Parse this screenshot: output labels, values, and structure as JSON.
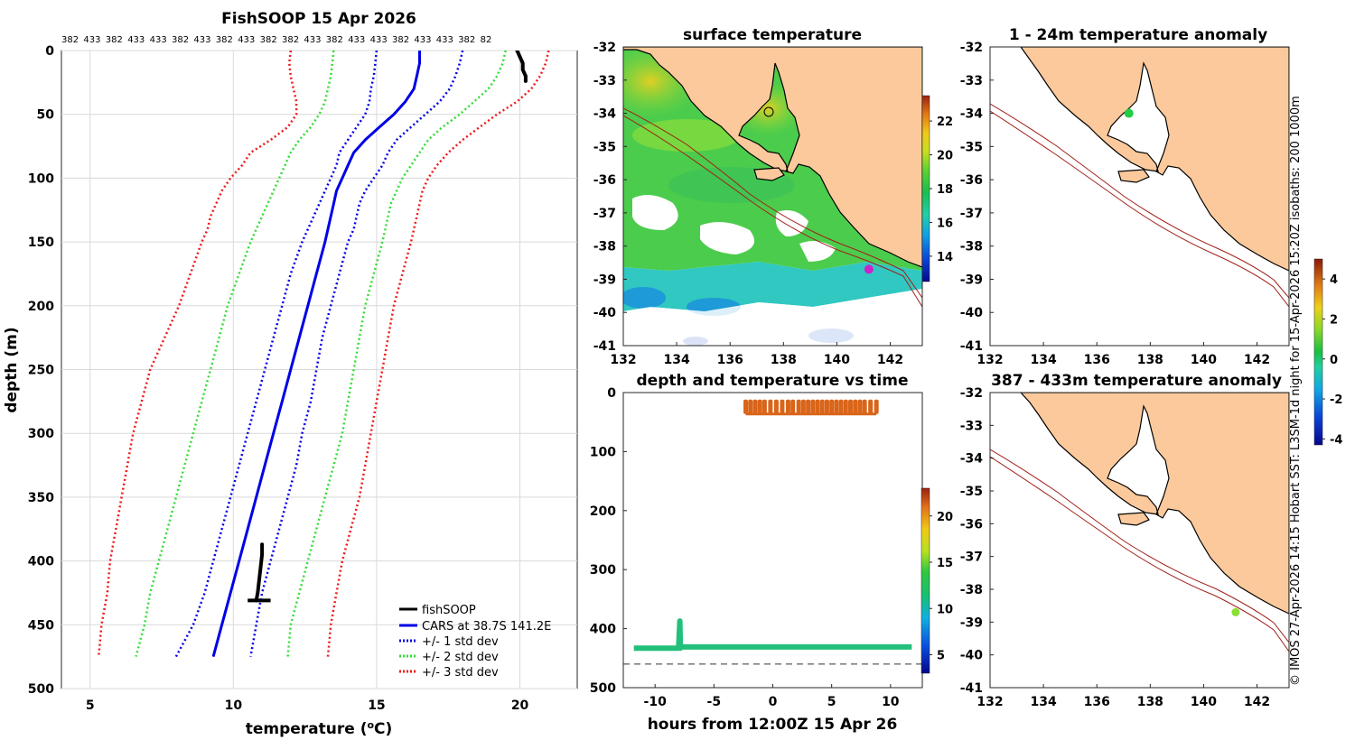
{
  "colors": {
    "land": "#fbc99b",
    "coast": "#000000",
    "isobath": "#a02018",
    "cars": "#0000e6",
    "std1": "#0000e6",
    "std2": "#33dd33",
    "std3": "#ee1a1a",
    "fish": "#000000",
    "trace_depth": "#22c07a",
    "trace_temp": "#d9651a"
  },
  "credit": "© IMOS 27-Apr-2026 14:15 Hobart SST: L3SM-1d night for 15-Apr-2026 15:20Z isobaths: 200  1000m",
  "chart_data": [
    {
      "type": "line",
      "title": "FishSOOP 15 Apr 2026",
      "xlabel": "temperature (°C)",
      "ylabel": "depth (m)",
      "xlim": [
        4,
        22
      ],
      "ylim": [
        0,
        500
      ],
      "xticks": [
        5,
        10,
        15,
        20
      ],
      "yticks": [
        0,
        50,
        100,
        150,
        200,
        250,
        300,
        350,
        400,
        450,
        500
      ],
      "top_labels": [
        "382",
        "433",
        "382",
        "433",
        "433",
        "382",
        "433",
        "382",
        "433",
        "382",
        "382",
        "433",
        "382",
        "433",
        "433",
        "382",
        "433",
        "433",
        "382",
        "82"
      ],
      "legend": [
        "fishSOOP",
        "CARS at 38.7S 141.2E",
        "+/- 1 std dev",
        "+/- 2 std dev",
        "+/- 3 std dev"
      ],
      "depth": [
        0,
        10,
        20,
        30,
        40,
        50,
        60,
        70,
        80,
        90,
        100,
        110,
        120,
        130,
        140,
        150,
        175,
        200,
        225,
        250,
        275,
        300,
        325,
        350,
        375,
        400,
        425,
        450,
        475
      ],
      "series": [
        {
          "name": "CARS mean",
          "values": [
            16.5,
            16.5,
            16.4,
            16.3,
            16.0,
            15.6,
            15.1,
            14.6,
            14.2,
            14.0,
            13.8,
            13.6,
            13.5,
            13.4,
            13.3,
            13.2,
            12.9,
            12.6,
            12.3,
            12.0,
            11.7,
            11.4,
            11.1,
            10.8,
            10.5,
            10.2,
            9.9,
            9.6,
            9.3
          ]
        },
        {
          "name": "+1 std",
          "values": [
            15.0,
            14.95,
            14.9,
            14.8,
            14.75,
            14.6,
            14.3,
            14.0,
            13.7,
            13.6,
            13.4,
            13.2,
            13.0,
            12.8,
            12.6,
            12.4,
            12.0,
            11.7,
            11.4,
            11.1,
            10.8,
            10.5,
            10.2,
            9.9,
            9.6,
            9.3,
            9.0,
            8.6,
            8.0
          ]
        },
        {
          "name": "-1 std",
          "values": [
            18.0,
            17.9,
            17.75,
            17.55,
            17.2,
            16.7,
            16.2,
            15.7,
            15.4,
            15.2,
            14.9,
            14.6,
            14.4,
            14.3,
            14.2,
            14.0,
            13.7,
            13.4,
            13.1,
            12.9,
            12.7,
            12.4,
            12.2,
            11.9,
            11.6,
            11.3,
            11.0,
            10.8,
            10.6
          ]
        },
        {
          "name": "-2 std",
          "values": [
            13.5,
            13.45,
            13.4,
            13.3,
            13.2,
            13.0,
            12.7,
            12.3,
            12.0,
            11.8,
            11.6,
            11.4,
            11.2,
            11.0,
            10.8,
            10.6,
            10.2,
            9.8,
            9.5,
            9.2,
            8.9,
            8.6,
            8.3,
            8.0,
            7.7,
            7.4,
            7.1,
            6.9,
            6.6
          ]
        },
        {
          "name": "+2 std",
          "values": [
            19.5,
            19.4,
            19.2,
            18.9,
            18.4,
            17.9,
            17.3,
            16.8,
            16.5,
            16.2,
            15.9,
            15.7,
            15.5,
            15.4,
            15.3,
            15.2,
            14.9,
            14.6,
            14.4,
            14.2,
            14.0,
            13.8,
            13.5,
            13.2,
            12.9,
            12.6,
            12.3,
            12.0,
            11.9
          ]
        },
        {
          "name": "-3 std",
          "values": [
            12.0,
            11.95,
            12.0,
            12.1,
            12.2,
            12.2,
            11.9,
            11.3,
            10.6,
            10.3,
            9.9,
            9.6,
            9.4,
            9.2,
            9.1,
            8.9,
            8.5,
            8.1,
            7.6,
            7.1,
            6.8,
            6.5,
            6.3,
            6.1,
            5.9,
            5.7,
            5.6,
            5.4,
            5.3
          ]
        },
        {
          "name": "+3 std",
          "values": [
            21.0,
            20.9,
            20.7,
            20.4,
            19.9,
            19.2,
            18.6,
            18.0,
            17.5,
            17.1,
            16.8,
            16.6,
            16.5,
            16.4,
            16.3,
            16.2,
            15.9,
            15.6,
            15.4,
            15.2,
            15.0,
            14.8,
            14.6,
            14.4,
            14.1,
            13.8,
            13.6,
            13.4,
            13.3
          ]
        }
      ],
      "fishsoop_segments": [
        {
          "depth": [
            0,
            5,
            10,
            15,
            20,
            24
          ],
          "values": [
            19.9,
            20.0,
            20.1,
            20.1,
            20.2,
            20.2
          ]
        },
        {
          "depth": [
            387,
            395,
            405,
            415,
            425,
            431
          ],
          "values": [
            11.0,
            11.0,
            10.95,
            10.9,
            10.85,
            10.8
          ]
        }
      ]
    },
    {
      "type": "heatmap",
      "title": "surface temperature",
      "xticks": [
        132,
        134,
        136,
        138,
        140,
        142
      ],
      "yticks": [
        -32,
        -33,
        -34,
        -35,
        -36,
        -37,
        -38,
        -39,
        -40,
        -41
      ],
      "xlim": [
        132,
        143.2
      ],
      "ylim": [
        -41,
        -32
      ],
      "colorbar_ticks": [
        14,
        16,
        18,
        20,
        22
      ],
      "colorbar_range": [
        12.5,
        23.5
      ],
      "marker_position": [
        141.2,
        -38.7
      ]
    },
    {
      "type": "scatter",
      "title": "depth and temperature vs time",
      "xlabel": "hours from 12:00Z 15 Apr 26",
      "xticks": [
        -10,
        -5,
        0,
        5,
        10
      ],
      "yticks": [
        0,
        100,
        200,
        300,
        400,
        500
      ],
      "xlim": [
        -12.7,
        12.7
      ],
      "ylim": [
        0,
        500
      ],
      "colorbar_ticks": [
        5,
        10,
        15,
        20
      ],
      "colorbar_range": [
        3,
        23
      ],
      "bottom_line_depth": 460,
      "depth_trace": {
        "hours": [
          -11.8,
          -8.0,
          -7.9,
          -7.85,
          -7.8,
          11.8
        ],
        "depth": [
          433,
          433,
          387,
          433,
          431,
          431
        ]
      },
      "temp_trace_depth": 15,
      "temp_spike_hours": [
        -2.3,
        -1.9,
        -1.5,
        -1.1,
        -0.7,
        -0.2,
        0.3,
        0.8,
        1.3,
        1.7,
        2.2,
        2.6,
        3.0,
        3.4,
        3.8,
        4.2,
        4.6,
        5.0,
        5.4,
        5.8,
        6.2,
        6.6,
        7.0,
        7.4,
        7.8,
        8.3,
        8.8
      ]
    },
    {
      "type": "heatmap",
      "title": "1 - 24m temperature anomaly",
      "xticks": [
        132,
        134,
        136,
        138,
        140,
        142
      ],
      "yticks": [
        -32,
        -33,
        -34,
        -35,
        -36,
        -37,
        -38,
        -39,
        -40,
        -41
      ],
      "colorbar_ticks": [
        -4,
        -2,
        0,
        2,
        4
      ],
      "colorbar_range": [
        -4.3,
        5
      ],
      "marker_position": [
        137.2,
        -34.0
      ]
    },
    {
      "type": "heatmap",
      "title": "387 - 433m temperature anomaly",
      "xticks": [
        132,
        134,
        136,
        138,
        140,
        142
      ],
      "yticks": [
        -32,
        -33,
        -34,
        -35,
        -36,
        -37,
        -38,
        -39,
        -40,
        -41
      ],
      "marker_position": [
        141.2,
        -38.7
      ]
    }
  ]
}
